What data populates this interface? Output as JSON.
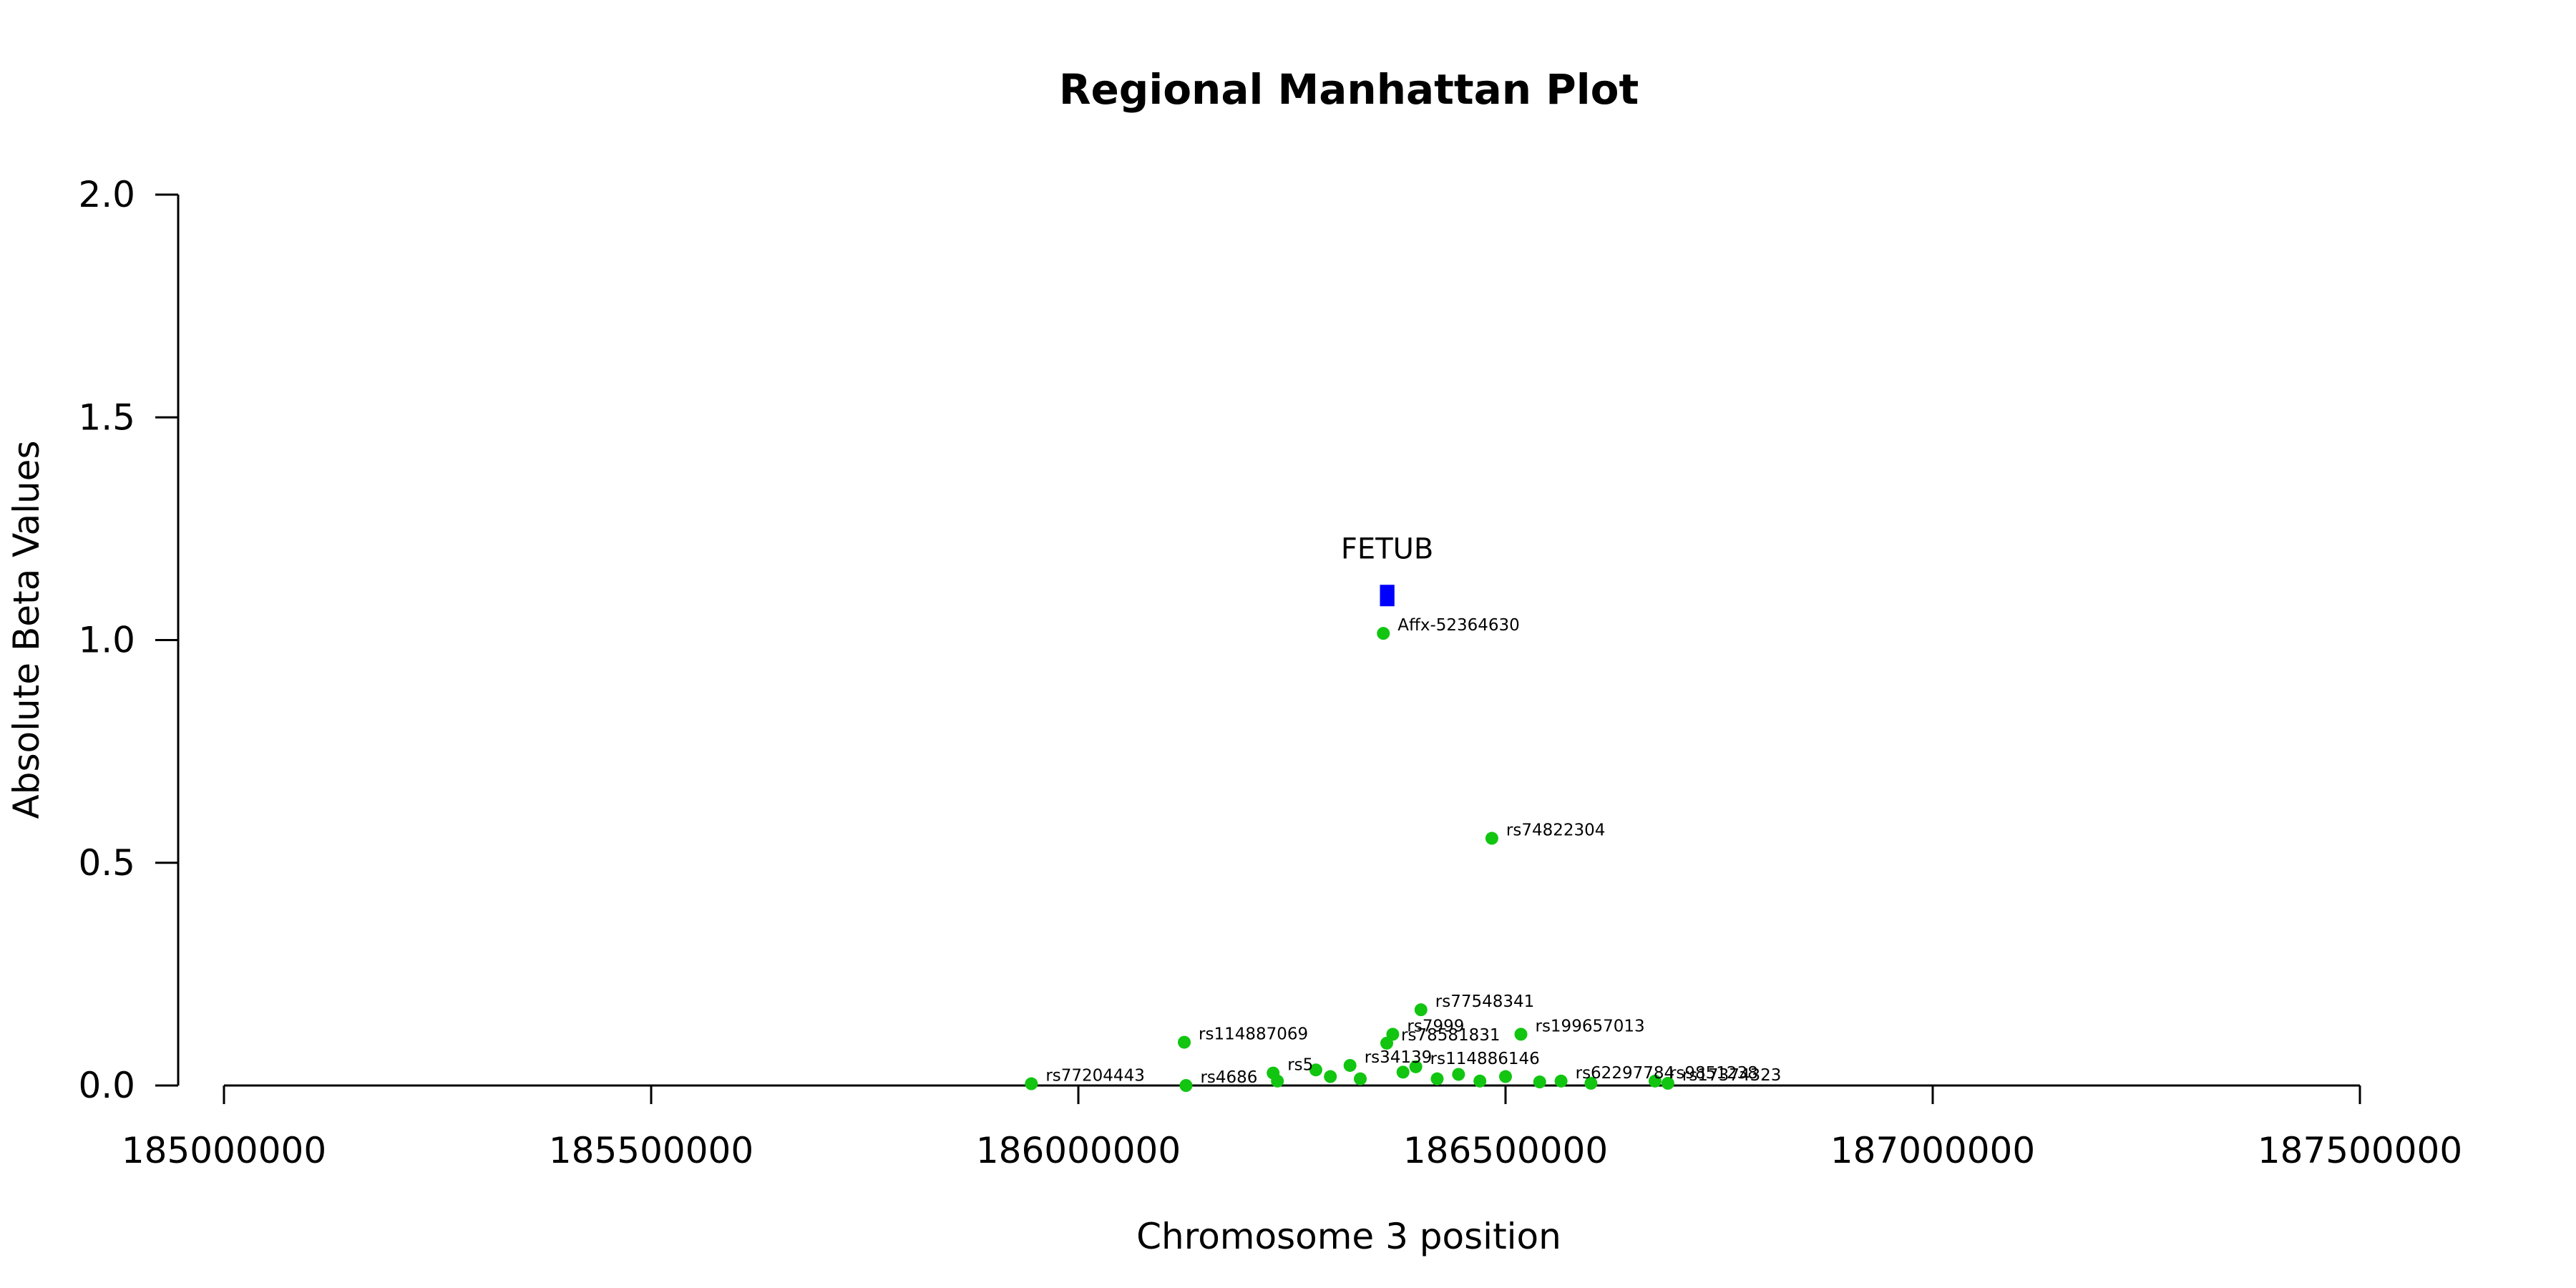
{
  "chart_data": {
    "type": "scatter",
    "title": "Regional Manhattan Plot",
    "xlabel": "Chromosome 3 position",
    "ylabel": "Absolute Beta Values",
    "xlim": [
      185000000,
      187500000
    ],
    "ylim": [
      0,
      2.0
    ],
    "x_ticks": [
      185000000,
      185500000,
      186000000,
      186500000,
      187000000,
      187500000
    ],
    "x_tick_labels": [
      "185000000",
      "185500000",
      "186000000",
      "186500000",
      "187000000",
      "187500000"
    ],
    "y_ticks": [
      0.0,
      0.5,
      1.0,
      1.5,
      2.0
    ],
    "y_tick_labels": [
      "0.0",
      "0.5",
      "1.0",
      "1.5",
      "2.0"
    ],
    "grid": false,
    "point_color": "#11c511",
    "gene_color": "#0000ff",
    "gene": {
      "name": "FETUB",
      "start": 186353000,
      "end": 186370000,
      "y": 1.1
    },
    "points": [
      {
        "label": "Affx-52364630",
        "x": 186357000,
        "y": 1.015
      },
      {
        "label": "rs74822304",
        "x": 186484000,
        "y": 0.555
      },
      {
        "label": "rs77548341",
        "x": 186401000,
        "y": 0.17
      },
      {
        "label": "rs199657013",
        "x": 186518000,
        "y": 0.115
      },
      {
        "label": "rs7999",
        "x": 186368000,
        "y": 0.115
      },
      {
        "label": "rs78581831",
        "x": 186361000,
        "y": 0.095
      },
      {
        "label": "rs114887069",
        "x": 186124000,
        "y": 0.097
      },
      {
        "label": "rs114886146",
        "x": 186395000,
        "y": 0.042
      },
      {
        "label": "rs34139",
        "x": 186318000,
        "y": 0.045
      },
      {
        "label": "rs5",
        "x": 186228000,
        "y": 0.028
      },
      {
        "label": "rs77204443",
        "x": 185945000,
        "y": 0.004
      },
      {
        "label": "rs4686",
        "x": 186126000,
        "y": 0.0
      },
      {
        "label": "rs62297784",
        "x": 186565000,
        "y": 0.01
      },
      {
        "label": "rs9851238",
        "x": 186675000,
        "y": 0.01
      },
      {
        "label": "rs17374323",
        "x": 186690000,
        "y": 0.005
      },
      {
        "label": "",
        "x": 186233000,
        "y": 0.01
      },
      {
        "label": "",
        "x": 186278000,
        "y": 0.035
      },
      {
        "label": "",
        "x": 186295000,
        "y": 0.02
      },
      {
        "label": "",
        "x": 186330000,
        "y": 0.015
      },
      {
        "label": "",
        "x": 186380000,
        "y": 0.03
      },
      {
        "label": "",
        "x": 186420000,
        "y": 0.015
      },
      {
        "label": "",
        "x": 186445000,
        "y": 0.025
      },
      {
        "label": "",
        "x": 186470000,
        "y": 0.01
      },
      {
        "label": "",
        "x": 186500000,
        "y": 0.02
      },
      {
        "label": "",
        "x": 186540000,
        "y": 0.008
      },
      {
        "label": "",
        "x": 186600000,
        "y": 0.005
      }
    ]
  }
}
